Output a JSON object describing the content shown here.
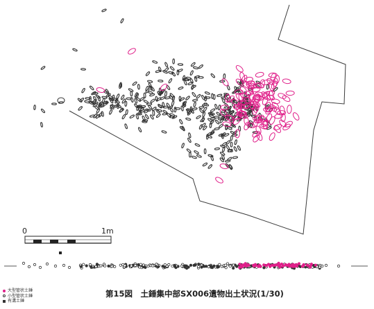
{
  "figure": {
    "caption": "第15図　土錘集中部SX006遺物出土状況(1/30)"
  },
  "scale_bar": {
    "start_label": "0",
    "end_label": "1m"
  },
  "legend": {
    "items": [
      {
        "label": "大型管状土錘",
        "color": "#e0208a",
        "icon": "filled-dot-pink"
      },
      {
        "label": "小型管状土錘",
        "color": "#333333",
        "icon": "open-circle"
      },
      {
        "label": "有溝土錘",
        "color": "#333333",
        "icon": "filled-square"
      }
    ]
  },
  "colors": {
    "large_weight": "#e0208a",
    "small_weight": "#333333",
    "outline": "#333333"
  }
}
